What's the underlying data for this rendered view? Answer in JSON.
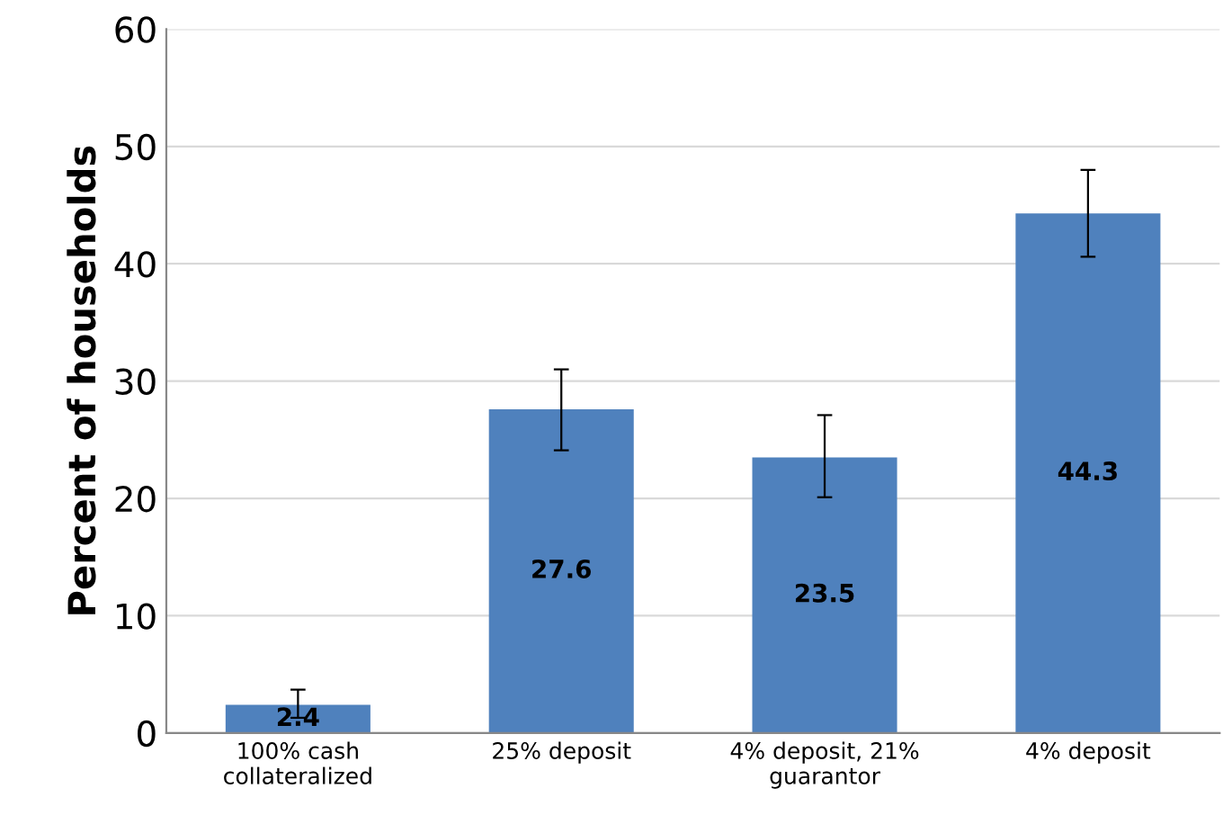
{
  "chart_data": {
    "type": "bar",
    "ylabel": "Percent of households",
    "categories": [
      "100% cash\ncollateralized",
      "25% deposit",
      "4% deposit, 21%\nguarantor",
      "4% deposit"
    ],
    "values": [
      2.4,
      27.6,
      23.5,
      44.3
    ],
    "errors": [
      [
        1.3,
        3.7
      ],
      [
        24.1,
        31.0
      ],
      [
        20.1,
        27.1
      ],
      [
        40.6,
        48.0
      ]
    ],
    "color": "#4f81bd",
    "data_labels": true,
    "ylim": [
      0,
      60
    ],
    "yticks": [
      0,
      10,
      20,
      30,
      40,
      50,
      60
    ],
    "grid": "y"
  }
}
